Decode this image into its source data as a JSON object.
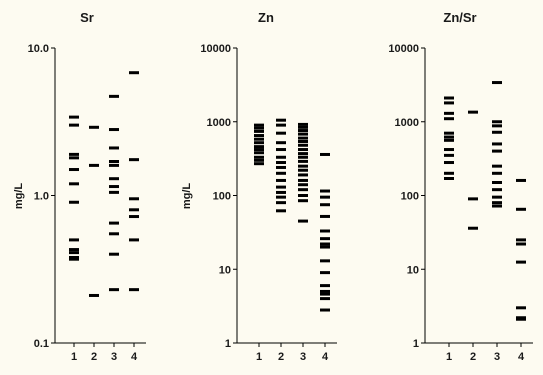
{
  "chart_data": [
    {
      "type": "scatter",
      "title": "Sr",
      "ylabel": "mg/L",
      "yscale": "log",
      "ylim": [
        0.1,
        10
      ],
      "yticks": [
        "0.1",
        "1.0",
        "10.0"
      ],
      "categories": [
        "1",
        "2",
        "3",
        "4"
      ],
      "points": [
        [
          3.4,
          3.0,
          1.9,
          1.8,
          1.5,
          1.2,
          0.9,
          0.5,
          0.43,
          0.41,
          0.38,
          0.37
        ],
        [
          2.9,
          1.6,
          0.21
        ],
        [
          4.7,
          2.8,
          2.1,
          1.7,
          1.6,
          1.3,
          1.15,
          1.05,
          0.65,
          0.55,
          0.4,
          0.23
        ],
        [
          6.8,
          1.75,
          0.95,
          0.8,
          0.72,
          0.5,
          0.23
        ]
      ]
    },
    {
      "type": "scatter",
      "title": "Zn",
      "ylabel": "mg/L",
      "yscale": "log",
      "ylim": [
        1,
        10000
      ],
      "yticks": [
        "1",
        "10",
        "100",
        "1000",
        "10000"
      ],
      "categories": [
        "1",
        "2",
        "3",
        "4"
      ],
      "points": [
        [
          900,
          820,
          740,
          650,
          580,
          520,
          460,
          420,
          380,
          330,
          300,
          270
        ],
        [
          1050,
          900,
          700,
          520,
          420,
          330,
          280,
          240,
          200,
          160,
          130,
          110,
          95,
          80,
          62
        ],
        [
          920,
          840,
          760,
          680,
          600,
          540,
          480,
          420,
          370,
          330,
          290,
          250,
          220,
          190,
          160,
          140,
          120,
          100,
          85,
          45
        ],
        [
          360,
          115,
          95,
          75,
          52,
          33,
          26,
          22,
          20,
          13,
          9,
          6,
          5,
          4.6,
          4,
          2.8
        ]
      ]
    },
    {
      "type": "scatter",
      "title": "Zn/Sr",
      "ylabel": "",
      "yscale": "log",
      "ylim": [
        1,
        10000
      ],
      "yticks": [
        "1",
        "10",
        "100",
        "1000",
        "10000"
      ],
      "categories": [
        "1",
        "2",
        "3",
        "4"
      ],
      "points": [
        [
          2100,
          1800,
          1300,
          1100,
          700,
          620,
          560,
          420,
          350,
          280,
          200,
          170
        ],
        [
          1350,
          90,
          36
        ],
        [
          3400,
          1000,
          880,
          720,
          500,
          400,
          250,
          200,
          150,
          120,
          95,
          80,
          72
        ],
        [
          160,
          65,
          25,
          22,
          12.5,
          3,
          2.2,
          2.1
        ]
      ]
    }
  ]
}
